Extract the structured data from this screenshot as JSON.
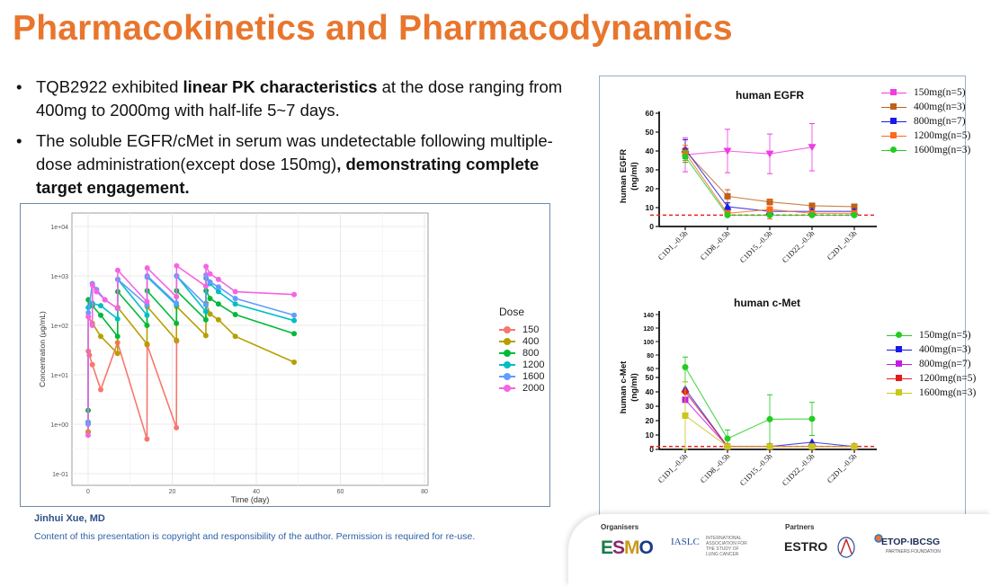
{
  "title": "Pharmacokinetics and Pharmacodynamics",
  "bullets": [
    {
      "parts": [
        {
          "t": "TQB2922 exhibited ",
          "b": false
        },
        {
          "t": "linear PK characteristics",
          "b": true
        },
        {
          "t": " at the dose ranging from 400mg to 2000mg with half-life 5~7 days.",
          "b": false
        }
      ]
    },
    {
      "parts": [
        {
          "t": " The soluble EGFR/cMet in serum was undetectable following multiple-dose administration(except dose 150mg)",
          "b": false
        },
        {
          "t": ", demonstrating complete target engagement.",
          "b": true
        }
      ]
    }
  ],
  "footer": {
    "author": "Jinhui Xue, MD",
    "copyright": "Content of this presentation is copyright and responsibility of the author. Permission is required for re-use.",
    "organisers_label": "Organisers",
    "partners_label": "Partners",
    "logos": {
      "esmo": "ESMO",
      "iaslc": "IASLC",
      "iaslc_sub": "INTERNATIONAL ASSOCIATION FOR THE STUDY OF LUNG CANCER",
      "estro": "ESTRO",
      "etop": "ETOP·IBCSG",
      "etop_sub": "PARTNERS FOUNDATION"
    }
  },
  "chart_data": [
    {
      "type": "line",
      "title": "",
      "xlabel": "Time (day)",
      "ylabel": "Concentration (μg/mL)",
      "xlim": [
        0,
        80
      ],
      "xticks": [
        "0",
        "20",
        "40",
        "60",
        "80"
      ],
      "ylim_log10": [
        -1,
        4
      ],
      "yticks": [
        "1e-01",
        "1e+00",
        "1e+01",
        "1e+02",
        "1e+03",
        "1e+04"
      ],
      "yscale": "log",
      "grid": true,
      "legend_title": "Dose",
      "legend_position": "right",
      "series": [
        {
          "name": "150",
          "color": "#F8766D",
          "points": [
            [
              0,
              0.7
            ],
            [
              0.05,
              30
            ],
            [
              0.3,
              25
            ],
            [
              1,
              16
            ],
            [
              3,
              5
            ],
            [
              7,
              45
            ],
            [
              14,
              0.5
            ],
            [
              14.05,
              40
            ],
            [
              21,
              0.85
            ],
            [
              21.05,
              48
            ]
          ]
        },
        {
          "name": "400",
          "color": "#B79F00",
          "points": [
            [
              0,
              0.7
            ],
            [
              0.05,
              150
            ],
            [
              1,
              110
            ],
            [
              3,
              60
            ],
            [
              7,
              27
            ],
            [
              7.05,
              230
            ],
            [
              14,
              42
            ],
            [
              14.05,
              240
            ],
            [
              21,
              50
            ],
            [
              21.05,
              240
            ],
            [
              28,
              62
            ],
            [
              28.05,
              280
            ],
            [
              29,
              170
            ],
            [
              31,
              130
            ],
            [
              35,
              60
            ],
            [
              49,
              18
            ]
          ]
        },
        {
          "name": "800",
          "color": "#00BA38",
          "points": [
            [
              0,
              1.9
            ],
            [
              0.05,
              330
            ],
            [
              1,
              250
            ],
            [
              3,
              160
            ],
            [
              7,
              60
            ],
            [
              7.05,
              480
            ],
            [
              14,
              100
            ],
            [
              14.05,
              500
            ],
            [
              21,
              110
            ],
            [
              21.05,
              500
            ],
            [
              28,
              130
            ],
            [
              28.05,
              500
            ],
            [
              29,
              350
            ],
            [
              31,
              270
            ],
            [
              35,
              165
            ],
            [
              49,
              68
            ]
          ]
        },
        {
          "name": "1200",
          "color": "#00BFC4",
          "points": [
            [
              0,
              1.1
            ],
            [
              0.05,
              230
            ],
            [
              1,
              280
            ],
            [
              3,
              250
            ],
            [
              7,
              135
            ],
            [
              7.05,
              850
            ],
            [
              14,
              160
            ],
            [
              14.05,
              950
            ],
            [
              21,
              260
            ],
            [
              21.05,
              1000
            ],
            [
              28,
              190
            ],
            [
              28.05,
              900
            ],
            [
              29,
              700
            ],
            [
              31,
              480
            ],
            [
              35,
              270
            ],
            [
              49,
              125
            ]
          ]
        },
        {
          "name": "1600",
          "color": "#619CFF",
          "points": [
            [
              0,
              1.0
            ],
            [
              0.05,
              180
            ],
            [
              1,
              700
            ],
            [
              2,
              530
            ],
            [
              4,
              330
            ],
            [
              7,
              220
            ],
            [
              7.05,
              850
            ],
            [
              14,
              260
            ],
            [
              14.05,
              1000
            ],
            [
              21,
              280
            ],
            [
              21.05,
              1000
            ],
            [
              28,
              260
            ],
            [
              28.05,
              1050
            ],
            [
              29,
              750
            ],
            [
              31,
              600
            ],
            [
              35,
              350
            ],
            [
              49,
              160
            ]
          ]
        },
        {
          "name": "2000",
          "color": "#F564E3",
          "points": [
            [
              0,
              0.6
            ],
            [
              0.05,
              150
            ],
            [
              1,
              100
            ],
            [
              1.05,
              650
            ],
            [
              2,
              480
            ],
            [
              4,
              330
            ],
            [
              7,
              220
            ],
            [
              7.05,
              1300
            ],
            [
              14,
              300
            ],
            [
              14.05,
              1450
            ],
            [
              21,
              380
            ],
            [
              21.05,
              1600
            ],
            [
              28,
              620
            ],
            [
              28.05,
              1550
            ],
            [
              29,
              1100
            ],
            [
              31,
              850
            ],
            [
              35,
              480
            ],
            [
              49,
              420
            ]
          ]
        }
      ]
    },
    {
      "type": "line",
      "title": "human EGFR",
      "ylabel": "human EGFR (ng/ml)",
      "ylabel_lines": [
        "human EGFR",
        "(ng/ml)"
      ],
      "categories": [
        "C1D1_-0.5h",
        "C1D8_-0.5h",
        "C1D15_-0.5h",
        "C1D22_-0.5h",
        "C2D1_-0.5h"
      ],
      "ylim": [
        0,
        60
      ],
      "yticks": [
        "0",
        "10",
        "20",
        "30",
        "40",
        "50",
        "60"
      ],
      "reference_line": 6,
      "legend_position": "right",
      "series": [
        {
          "name": "150mg(n=5)",
          "color": "#F03CE0",
          "marker": "triangle-down",
          "values": [
            38,
            40,
            38.5,
            42,
            null
          ],
          "errors": [
            9,
            11.5,
            10.5,
            12.5,
            null
          ]
        },
        {
          "name": "400mg(n=3)",
          "color": "#C0601A",
          "marker": "square",
          "values": [
            40,
            16,
            13,
            11,
            10.5
          ],
          "errors": [
            6,
            3.5,
            1.5,
            1,
            1
          ]
        },
        {
          "name": "800mg(n=7)",
          "color": "#1A1AE6",
          "marker": "triangle",
          "values": [
            41,
            10.5,
            8,
            8,
            8
          ],
          "errors": [
            5,
            2,
            1,
            1,
            1
          ]
        },
        {
          "name": "1200mg(n=5)",
          "color": "#FF6A1A",
          "marker": "square",
          "values": [
            39,
            7,
            9,
            7,
            7
          ],
          "errors": [
            4,
            1,
            5,
            1,
            1
          ]
        },
        {
          "name": "1600mg(n=3)",
          "color": "#22CC22",
          "marker": "circle",
          "values": [
            37,
            6,
            6,
            6,
            6
          ],
          "errors": [
            3,
            0.5,
            0.5,
            0.5,
            0.5
          ]
        }
      ]
    },
    {
      "type": "line",
      "title": "human c-Met",
      "ylabel": "human c-Met (ng/ml)",
      "ylabel_lines": [
        "human c-Met",
        "(ng/ml)"
      ],
      "categories": [
        "C1D1_-0.5h",
        "C1D8_-0.5h",
        "C1D15_-0.5h",
        "C1D22_-0.5h",
        "C2D1_-0.5h"
      ],
      "ylim": [
        0,
        140
      ],
      "yticks": [
        "0",
        "10",
        "20",
        "30",
        "40",
        "50"
      ],
      "yticks_broken": [
        "60",
        "80",
        "100",
        "120",
        "140"
      ],
      "reference_line": 2,
      "legend_position": "right",
      "series": [
        {
          "name": "150mg(n=5)",
          "color": "#22CC22",
          "marker": "circle",
          "values": [
            62,
            7.5,
            21,
            21.2,
            null
          ],
          "errors": [
            15,
            6,
            17,
            11.5,
            null
          ]
        },
        {
          "name": "400mg(n=3)",
          "color": "#1A1AE6",
          "marker": "triangle",
          "values": [
            42,
            2,
            2,
            5,
            2
          ],
          "errors": [
            0,
            0,
            0,
            0,
            0
          ]
        },
        {
          "name": "800mg(n=7)",
          "color": "#C61AE6",
          "marker": "square",
          "values": [
            34.5,
            2,
            2,
            2,
            2
          ],
          "errors": [
            0,
            0,
            0,
            0,
            0
          ]
        },
        {
          "name": "1200mg(n=5)",
          "color": "#E61A1A",
          "marker": "diamond",
          "values": [
            40,
            2,
            2,
            2,
            2
          ],
          "errors": [
            0,
            0,
            0,
            0,
            0
          ]
        },
        {
          "name": "1600mg(n=3)",
          "color": "#C8C81A",
          "marker": "square",
          "values": [
            23.5,
            2,
            2,
            2,
            2
          ],
          "errors": [
            23.5,
            0,
            0,
            0,
            0
          ]
        }
      ]
    }
  ]
}
